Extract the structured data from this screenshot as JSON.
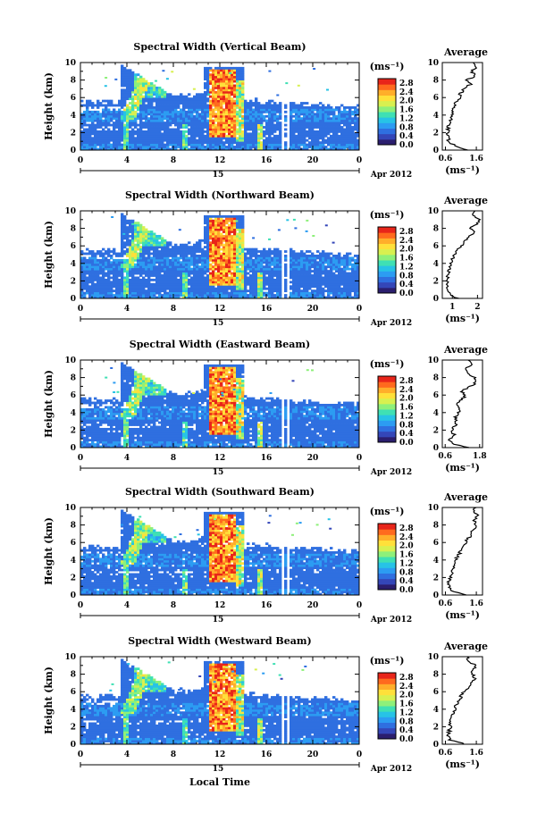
{
  "figure": {
    "xlabel": "Local Time",
    "colorbar_unit": "(ms⁻¹)",
    "colorbar_ticks": [
      "0.0",
      "0.4",
      "0.8",
      "1.2",
      "1.6",
      "2.0",
      "2.4",
      "2.8"
    ],
    "date_day": "15",
    "date_label": "Apr 2012",
    "avg_title": "Average",
    "avg_unit": "(ms⁻¹)",
    "colormap": [
      "#2b1e6e",
      "#3446b8",
      "#2f6fe0",
      "#2c9cf2",
      "#27c3e6",
      "#3fe0b4",
      "#8ef07a",
      "#d8f050",
      "#ffe03a",
      "#ffae2a",
      "#ff6a1e",
      "#e8251a"
    ]
  },
  "chart_data": [
    {
      "type": "heatmap",
      "title": "Spectral Width (Vertical Beam)",
      "ylabel": "Height (km)",
      "x_ticks": [
        "0",
        "4",
        "8",
        "12",
        "16",
        "20",
        "0"
      ],
      "y_ticks": [
        "0",
        "2",
        "4",
        "6",
        "8",
        "10"
      ],
      "xlim": [
        0,
        24
      ],
      "ylim": [
        0,
        10
      ],
      "clim": [
        0,
        3.0
      ],
      "avg_profile": {
        "x_ticks": [
          "0.6",
          "1.6"
        ],
        "xlim": [
          0.5,
          1.8
        ],
        "height": [
          0,
          0.5,
          1,
          1.5,
          2,
          2.5,
          3,
          3.5,
          4,
          4.5,
          5,
          5.5,
          6,
          6.5,
          7,
          7.5,
          8,
          8.5,
          9,
          9.5,
          10
        ],
        "value": [
          1.3,
          0.9,
          0.7,
          0.72,
          0.68,
          0.7,
          0.72,
          0.78,
          0.8,
          0.85,
          0.9,
          0.95,
          1.05,
          1.1,
          1.2,
          1.4,
          1.3,
          1.55,
          1.45,
          1.6,
          1.5
        ]
      }
    },
    {
      "type": "heatmap",
      "title": "Spectral Width (Northward Beam)",
      "ylabel": "Height (km)",
      "x_ticks": [
        "0",
        "4",
        "8",
        "12",
        "16",
        "20",
        "0"
      ],
      "y_ticks": [
        "0",
        "2",
        "4",
        "6",
        "8",
        "10"
      ],
      "xlim": [
        0,
        24
      ],
      "ylim": [
        0,
        10
      ],
      "clim": [
        0,
        3.0
      ],
      "avg_profile": {
        "x_ticks": [
          "1",
          "2"
        ],
        "xlim": [
          0.6,
          2.2
        ],
        "height": [
          0,
          0.5,
          1,
          1.5,
          2,
          2.5,
          3,
          3.5,
          4,
          4.5,
          5,
          5.5,
          6,
          6.5,
          7,
          7.5,
          8,
          8.5,
          9,
          9.5,
          10
        ],
        "value": [
          1.2,
          0.9,
          0.75,
          0.78,
          0.8,
          0.82,
          0.85,
          0.9,
          0.95,
          1.0,
          1.1,
          1.2,
          1.35,
          1.5,
          1.6,
          1.9,
          1.7,
          2.0,
          2.1,
          1.8,
          1.9
        ]
      }
    },
    {
      "type": "heatmap",
      "title": "Spectral Width (Eastward Beam)",
      "ylabel": "Height (km)",
      "x_ticks": [
        "0",
        "4",
        "8",
        "12",
        "16",
        "20",
        "0"
      ],
      "y_ticks": [
        "0",
        "2",
        "4",
        "6",
        "8",
        "10"
      ],
      "xlim": [
        0,
        24
      ],
      "ylim": [
        0,
        10
      ],
      "clim": [
        0,
        3.0
      ],
      "avg_profile": {
        "x_ticks": [
          "0.6",
          "1.8"
        ],
        "xlim": [
          0.5,
          1.9
        ],
        "height": [
          0,
          0.5,
          1,
          1.5,
          2,
          2.5,
          3,
          3.5,
          4,
          4.5,
          5,
          5.5,
          6,
          6.5,
          7,
          7.5,
          8,
          8.5,
          9,
          9.5,
          10
        ],
        "value": [
          1.4,
          0.8,
          0.75,
          0.9,
          0.85,
          0.95,
          1.0,
          0.95,
          1.05,
          1.1,
          1.0,
          1.2,
          1.3,
          1.15,
          1.5,
          1.7,
          1.6,
          1.4,
          1.3,
          1.5,
          1.4
        ]
      }
    },
    {
      "type": "heatmap",
      "title": "Spectral Width (Southward Beam)",
      "ylabel": "Height (km)",
      "x_ticks": [
        "0",
        "4",
        "8",
        "12",
        "16",
        "20",
        "0"
      ],
      "y_ticks": [
        "0",
        "2",
        "4",
        "6",
        "8",
        "10"
      ],
      "xlim": [
        0,
        24
      ],
      "ylim": [
        0,
        10
      ],
      "clim": [
        0,
        3.0
      ],
      "avg_profile": {
        "x_ticks": [
          "0.6",
          "1.6"
        ],
        "xlim": [
          0.5,
          1.8
        ],
        "height": [
          0,
          0.5,
          1,
          1.5,
          2,
          2.5,
          3,
          3.5,
          4,
          4.5,
          5,
          5.5,
          6,
          6.5,
          7,
          7.5,
          8,
          8.5,
          9,
          9.5,
          10
        ],
        "value": [
          1.3,
          0.75,
          0.7,
          0.72,
          0.75,
          0.8,
          0.82,
          0.88,
          0.95,
          1.0,
          1.1,
          1.15,
          1.25,
          1.35,
          1.45,
          1.5,
          1.6,
          1.55,
          1.65,
          1.5,
          1.6
        ]
      }
    },
    {
      "type": "heatmap",
      "title": "Spectral Width (Westward Beam)",
      "ylabel": "Height (km)",
      "x_ticks": [
        "0",
        "4",
        "8",
        "12",
        "16",
        "20",
        "0"
      ],
      "y_ticks": [
        "0",
        "2",
        "4",
        "6",
        "8",
        "10"
      ],
      "xlim": [
        0,
        24
      ],
      "ylim": [
        0,
        10
      ],
      "clim": [
        0,
        3.0
      ],
      "avg_profile": {
        "x_ticks": [
          "0.6",
          "1.6"
        ],
        "xlim": [
          0.5,
          1.8
        ],
        "height": [
          0,
          0.5,
          1,
          1.5,
          2,
          2.5,
          3,
          3.5,
          4,
          4.5,
          5,
          5.5,
          6,
          6.5,
          7,
          7.5,
          8,
          8.5,
          9,
          9.5,
          10
        ],
        "value": [
          1.25,
          0.75,
          0.7,
          0.72,
          0.75,
          0.78,
          0.8,
          0.85,
          0.9,
          0.95,
          1.05,
          1.1,
          1.2,
          1.35,
          1.4,
          1.55,
          1.5,
          1.45,
          1.6,
          1.35,
          1.3
        ]
      }
    }
  ]
}
